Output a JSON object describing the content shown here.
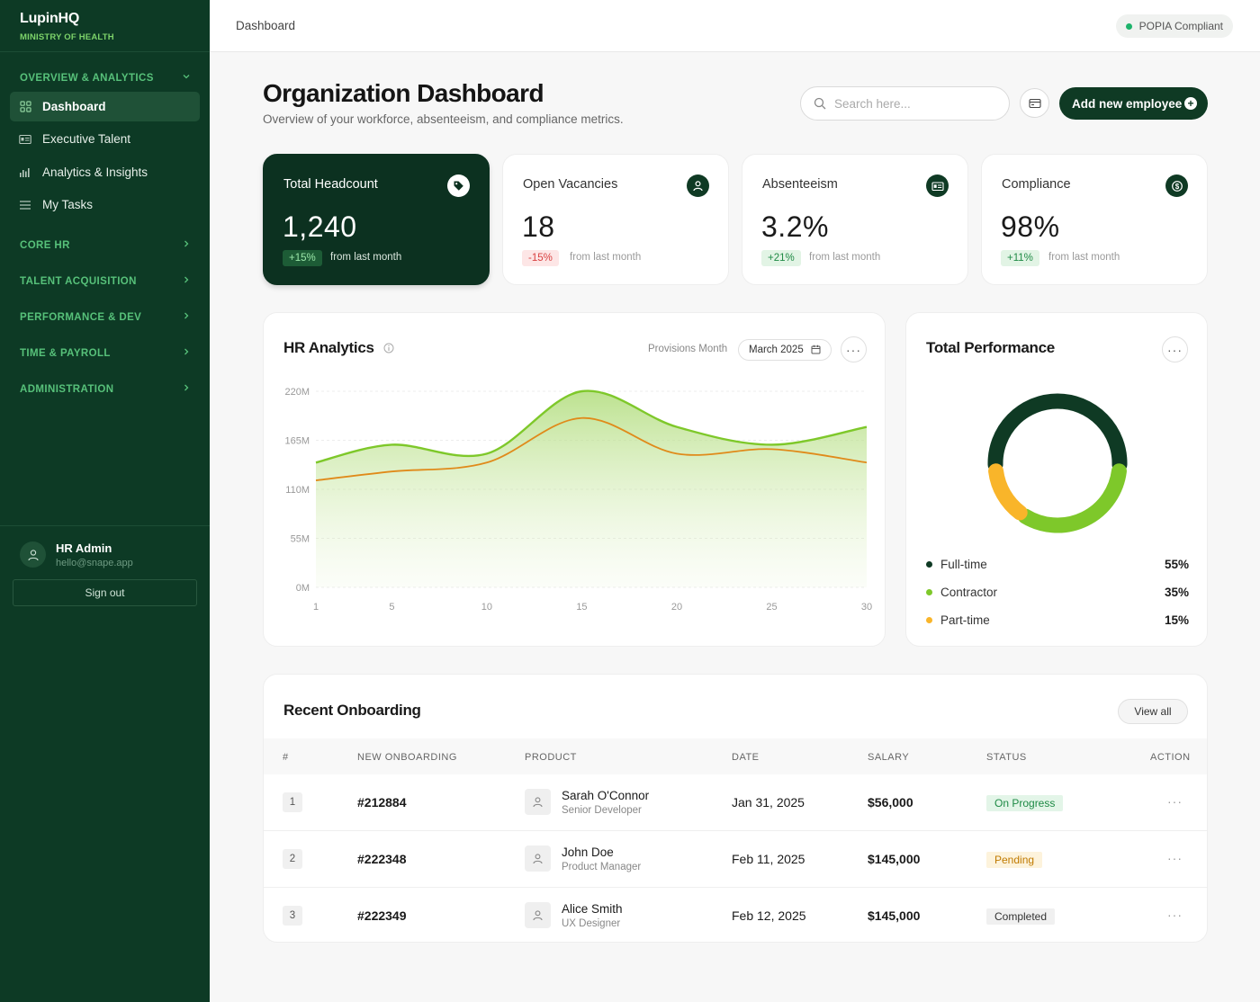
{
  "brand": {
    "name": "LupinHQ",
    "subtitle": "MINISTRY OF HEALTH"
  },
  "sidebar": {
    "overview_section": "OVERVIEW & ANALYTICS",
    "items": [
      {
        "label": "Dashboard",
        "icon": "grid-icon",
        "active": true
      },
      {
        "label": "Executive Talent",
        "icon": "id-card-icon"
      },
      {
        "label": "Analytics & Insights",
        "icon": "bar-chart-icon"
      },
      {
        "label": "My Tasks",
        "icon": "list-icon"
      }
    ],
    "sections": [
      {
        "label": "CORE HR"
      },
      {
        "label": "TALENT ACQUISITION"
      },
      {
        "label": "PERFORMANCE & DEV"
      },
      {
        "label": "TIME & PAYROLL"
      },
      {
        "label": "ADMINISTRATION"
      }
    ],
    "user": {
      "name": "HR Admin",
      "email": "hello@snape.app",
      "signout": "Sign out"
    }
  },
  "topbar": {
    "breadcrumb": "Dashboard",
    "badge": "POPIA Compliant"
  },
  "header": {
    "title": "Organization Dashboard",
    "subtitle": "Overview of your workforce, absenteeism, and compliance metrics.",
    "search_placeholder": "Search here...",
    "add_button": "Add new employee"
  },
  "stats": [
    {
      "title": "Total Headcount",
      "value": "1,240",
      "change": "+15%",
      "direction": "up",
      "note": "from last month",
      "icon": "tag-icon"
    },
    {
      "title": "Open Vacancies",
      "value": "18",
      "change": "-15%",
      "direction": "down",
      "note": "from last month",
      "icon": "user-icon"
    },
    {
      "title": "Absenteeism",
      "value": "3.2%",
      "change": "+21%",
      "direction": "up",
      "note": "from last month",
      "icon": "id-card-icon"
    },
    {
      "title": "Compliance",
      "value": "98%",
      "change": "+11%",
      "direction": "up",
      "note": "from last month",
      "icon": "dollar-icon"
    }
  ],
  "hr_analytics": {
    "title": "HR Analytics",
    "period_label": "Provisions Month",
    "period_value": "March 2025"
  },
  "chart_data": {
    "type": "area",
    "x": [
      1,
      5,
      10,
      15,
      20,
      25,
      30
    ],
    "xticks": [
      "1",
      "5",
      "10",
      "15",
      "20",
      "25",
      "30"
    ],
    "yticks": [
      "220M",
      "165M",
      "110M",
      "55M",
      "0M"
    ],
    "ylim": [
      0,
      220
    ],
    "series": [
      {
        "values": [
          140,
          160,
          150,
          220,
          180,
          160,
          180
        ],
        "color": "#7ec82a"
      },
      {
        "values": [
          120,
          130,
          140,
          190,
          150,
          155,
          140
        ],
        "color": "#e08a1a"
      }
    ]
  },
  "performance": {
    "title": "Total Performance",
    "segments": [
      {
        "label": "Full-time",
        "value": "55%",
        "pct": 55,
        "color": "#0f3a24"
      },
      {
        "label": "Contractor",
        "value": "35%",
        "pct": 35,
        "color": "#7ec82a"
      },
      {
        "label": "Part-time",
        "value": "15%",
        "pct": 15,
        "color": "#f9b52a"
      }
    ]
  },
  "onboarding": {
    "title": "Recent Onboarding",
    "view_all": "View all",
    "headers": [
      "#",
      "NEW ONBOARDING",
      "PRODUCT",
      "DATE",
      "SALARY",
      "STATUS",
      "ACTION"
    ],
    "rows": [
      {
        "num": "1",
        "id": "#212884",
        "name": "Sarah O'Connor",
        "role": "Senior Developer",
        "date": "Jan 31, 2025",
        "salary": "$56,000",
        "status": "On Progress",
        "status_type": "progress"
      },
      {
        "num": "2",
        "id": "#222348",
        "name": "John Doe",
        "role": "Product Manager",
        "date": "Feb 11, 2025",
        "salary": "$145,000",
        "status": "Pending",
        "status_type": "pending"
      },
      {
        "num": "3",
        "id": "#222349",
        "name": "Alice Smith",
        "role": "UX Designer",
        "date": "Feb 12, 2025",
        "salary": "$145,000",
        "status": "Completed",
        "status_type": "completed"
      }
    ]
  }
}
